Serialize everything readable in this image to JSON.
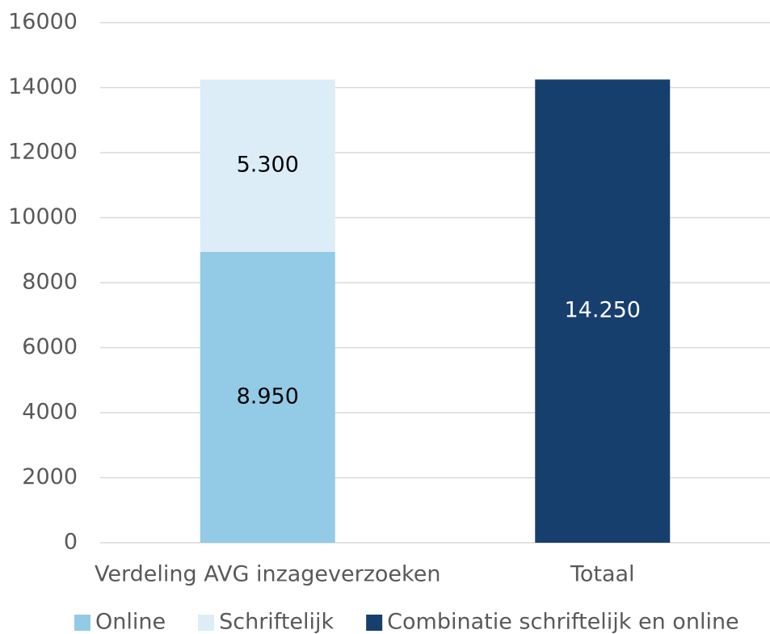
{
  "chart_data": {
    "type": "stacked_bar",
    "categories": [
      "Verdeling AVG inzageverzoeken",
      "Totaal"
    ],
    "series": [
      {
        "name": "Online",
        "color": "#93cbe7",
        "label_color": "#000000",
        "values": [
          8950,
          null
        ],
        "value_labels": [
          "8.950",
          null
        ]
      },
      {
        "name": "Schriftelijk",
        "color": "#dcedf8",
        "label_color": "#000000",
        "values": [
          5300,
          null
        ],
        "value_labels": [
          "5.300",
          null
        ]
      },
      {
        "name": "Combinatie schriftelijk en online",
        "color": "#173f6e",
        "label_color": "#ffffff",
        "values": [
          null,
          14250
        ],
        "value_labels": [
          null,
          "14.250"
        ]
      }
    ],
    "ylim": [
      0,
      16000
    ],
    "yticks": [
      0,
      2000,
      4000,
      6000,
      8000,
      10000,
      12000,
      14000,
      16000
    ],
    "grid": true,
    "legend": "bottom"
  }
}
